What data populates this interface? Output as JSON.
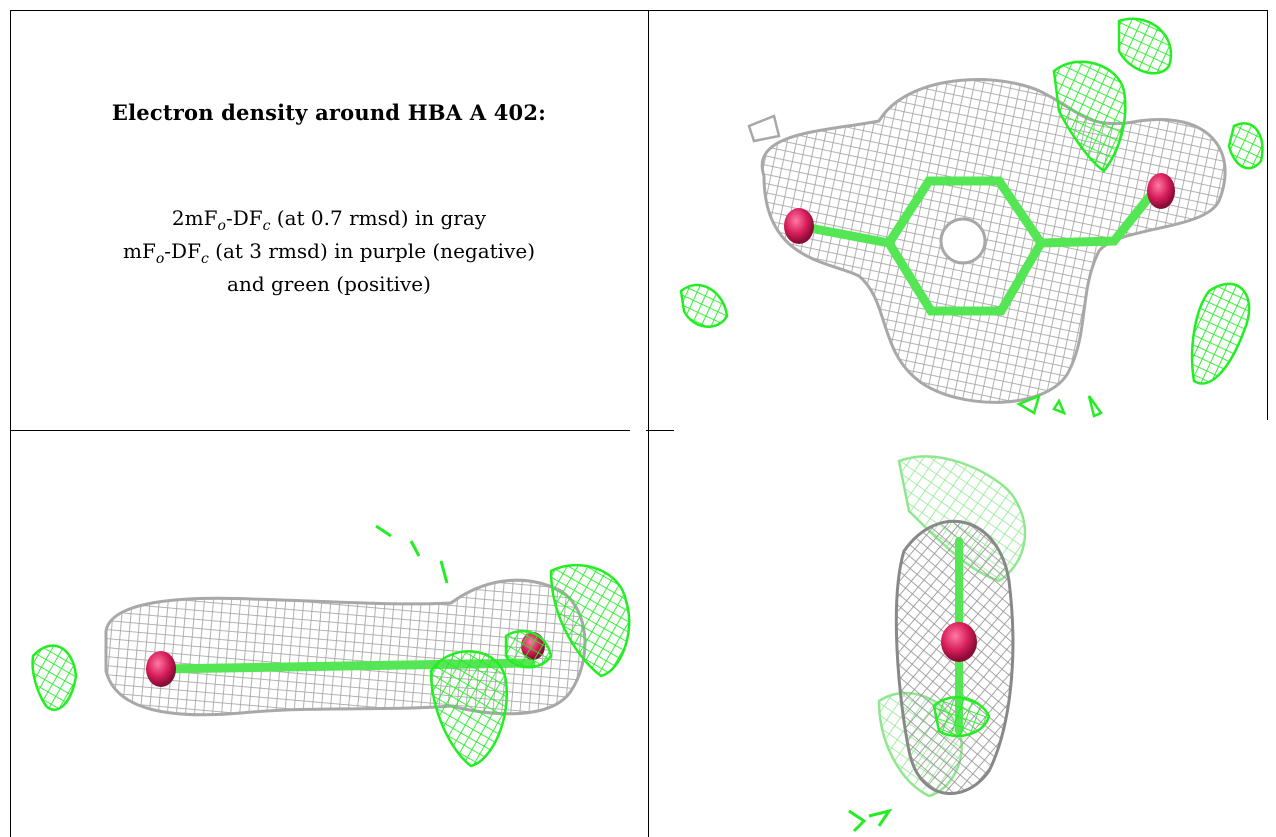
{
  "caption": {
    "title": "Electron density around HBA A 402:",
    "line1_a": "2mF",
    "line1_sub1": "o",
    "line1_b": "-DF",
    "line1_sub2": "c",
    "line1_c": " (at 0.7 rmsd) in gray",
    "line2_a": "mF",
    "line2_sub1": "o",
    "line2_b": "-DF",
    "line2_sub2": "c",
    "line2_c": " (at 3 rmsd) in purple (negative)",
    "line3": "and green (positive)"
  },
  "colors": {
    "gray_mesh": "#a8a8a8",
    "green_mesh": "#22ee22",
    "light_green_mesh": "#8fe88f",
    "stick": "#55e655",
    "oxygen": "#d81e5b",
    "border": "#000000"
  },
  "panels": [
    {
      "view": "top-view",
      "icon": "hba-ligand-density-front"
    },
    {
      "view": "side-view",
      "icon": "hba-ligand-density-side"
    },
    {
      "view": "end-view",
      "icon": "hba-ligand-density-end"
    }
  ]
}
